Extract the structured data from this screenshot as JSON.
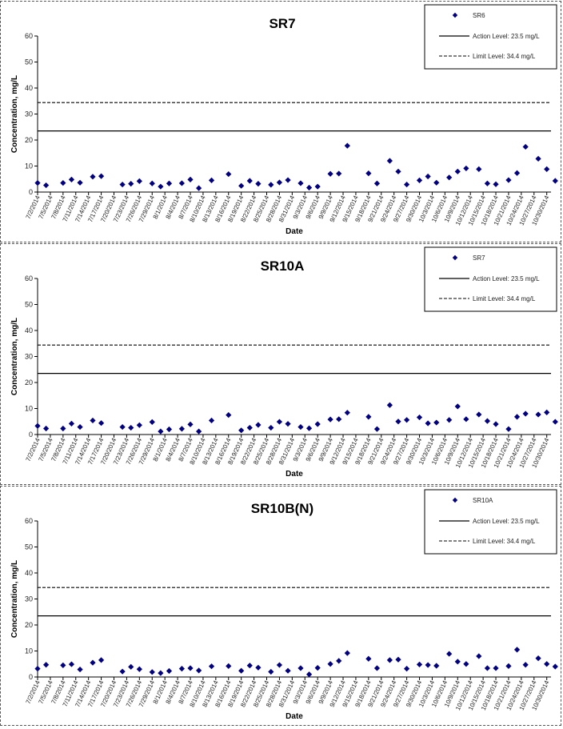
{
  "chart_data": [
    {
      "type": "scatter",
      "title": "SR7",
      "xlabel": "Date",
      "ylabel": "Concentration, mg/L",
      "ylim": [
        0,
        60
      ],
      "yticks": [
        "0",
        "10",
        "20",
        "30",
        "40",
        "50",
        "60"
      ],
      "xlim": [
        "7/2/2014",
        "10/31/2014"
      ],
      "xticks": [
        "7/2/2014",
        "7/5/2014",
        "7/8/2014",
        "7/11/2014",
        "7/14/2014",
        "7/17/2014",
        "7/20/2014",
        "7/23/2014",
        "7/26/2014",
        "7/29/2014",
        "8/1/2014",
        "8/4/2014",
        "8/7/2014",
        "8/10/2014",
        "8/13/2014",
        "8/16/2014",
        "8/19/2014",
        "8/22/2014",
        "8/25/2014",
        "8/28/2014",
        "8/31/2014",
        "9/3/2014",
        "9/6/2014",
        "9/9/2014",
        "9/12/2014",
        "9/15/2014",
        "9/18/2014",
        "9/21/2014",
        "9/24/2014",
        "9/27/2014",
        "9/30/2014",
        "10/3/2014",
        "10/6/2014",
        "10/9/2014",
        "10/12/2014",
        "10/15/2014",
        "10/18/2014",
        "10/21/2014",
        "10/24/2014",
        "10/27/2014",
        "10/30/2014"
      ],
      "legend_position": "top-right",
      "series": [
        {
          "name": "SR6",
          "marker": "diamond",
          "color": "#000080",
          "x": [
            "7/2/2014",
            "7/4/2014",
            "7/8/2014",
            "7/10/2014",
            "7/12/2014",
            "7/15/2014",
            "7/17/2014",
            "7/22/2014",
            "7/24/2014",
            "7/26/2014",
            "7/29/2014",
            "7/31/2014",
            "8/2/2014",
            "8/5/2014",
            "8/7/2014",
            "8/9/2014",
            "8/12/2014",
            "8/16/2014",
            "8/19/2014",
            "8/21/2014",
            "8/23/2014",
            "8/26/2014",
            "8/28/2014",
            "8/30/2014",
            "9/2/2014",
            "9/4/2014",
            "9/6/2014",
            "9/9/2014",
            "9/11/2014",
            "9/13/2014",
            "9/18/2014",
            "9/20/2014",
            "9/23/2014",
            "9/25/2014",
            "9/27/2014",
            "9/30/2014",
            "10/2/2014",
            "10/4/2014",
            "10/7/2014",
            "10/9/2014",
            "10/11/2014",
            "10/14/2014",
            "10/16/2014",
            "10/18/2014",
            "10/21/2014",
            "10/23/2014",
            "10/25/2014",
            "10/28/2014",
            "10/30/2014",
            "11/1/2014"
          ],
          "y": [
            3.5,
            2.6,
            3.5,
            4.8,
            3.6,
            5.9,
            6.1,
            2.9,
            3.2,
            4.2,
            3.3,
            2.1,
            3.3,
            3.4,
            4.8,
            1.5,
            4.5,
            6.9,
            2.4,
            4.3,
            3.2,
            2.8,
            3.7,
            4.6,
            3.4,
            1.7,
            2.1,
            7.0,
            7.1,
            17.8,
            7.2,
            3.3,
            12.0,
            7.9,
            2.9,
            4.5,
            6.0,
            3.6,
            5.6,
            7.9,
            9.1,
            8.8,
            3.3,
            3.0,
            4.6,
            7.3,
            17.4,
            12.8,
            8.8,
            4.3
          ]
        }
      ],
      "reference_lines": [
        {
          "name": "Action Level: 23.5 mg/L",
          "y": 23.5,
          "style": "solid"
        },
        {
          "name": "Limit Level: 34.4 mg/L",
          "y": 34.4,
          "style": "dashed"
        }
      ]
    },
    {
      "type": "scatter",
      "title": "SR10A",
      "xlabel": "Date",
      "ylabel": "Concentration, mg/L",
      "ylim": [
        0,
        60
      ],
      "yticks": [
        "0",
        "10",
        "20",
        "30",
        "40",
        "50",
        "60"
      ],
      "xlim": [
        "7/2/2014",
        "10/31/2014"
      ],
      "xticks": [
        "7/2/2014",
        "7/5/2014",
        "7/8/2014",
        "7/11/2014",
        "7/14/2014",
        "7/17/2014",
        "7/20/2014",
        "7/23/2014",
        "7/26/2014",
        "7/29/2014",
        "8/1/2014",
        "8/4/2014",
        "8/7/2014",
        "8/10/2014",
        "8/13/2014",
        "8/16/2014",
        "8/19/2014",
        "8/22/2014",
        "8/25/2014",
        "8/28/2014",
        "8/31/2014",
        "9/3/2014",
        "9/6/2014",
        "9/9/2014",
        "9/12/2014",
        "9/15/2014",
        "9/18/2014",
        "9/21/2014",
        "9/24/2014",
        "9/27/2014",
        "9/30/2014",
        "10/3/2014",
        "10/6/2014",
        "10/9/2014",
        "10/12/2014",
        "10/15/2014",
        "10/18/2014",
        "10/21/2014",
        "10/24/2014",
        "10/27/2014",
        "10/30/2014"
      ],
      "legend_position": "top-right",
      "series": [
        {
          "name": "SR7",
          "marker": "diamond",
          "color": "#000080",
          "x": [
            "7/2/2014",
            "7/4/2014",
            "7/8/2014",
            "7/10/2014",
            "7/12/2014",
            "7/15/2014",
            "7/17/2014",
            "7/22/2014",
            "7/24/2014",
            "7/26/2014",
            "7/29/2014",
            "7/31/2014",
            "8/2/2014",
            "8/5/2014",
            "8/7/2014",
            "8/9/2014",
            "8/12/2014",
            "8/16/2014",
            "8/19/2014",
            "8/21/2014",
            "8/23/2014",
            "8/26/2014",
            "8/28/2014",
            "8/30/2014",
            "9/2/2014",
            "9/4/2014",
            "9/6/2014",
            "9/9/2014",
            "9/11/2014",
            "9/13/2014",
            "9/18/2014",
            "9/20/2014",
            "9/23/2014",
            "9/25/2014",
            "9/27/2014",
            "9/30/2014",
            "10/2/2014",
            "10/4/2014",
            "10/7/2014",
            "10/9/2014",
            "10/11/2014",
            "10/14/2014",
            "10/16/2014",
            "10/18/2014",
            "10/21/2014",
            "10/23/2014",
            "10/25/2014",
            "10/28/2014",
            "10/30/2014",
            "11/1/2014"
          ],
          "y": [
            3.3,
            2.3,
            2.3,
            4.2,
            2.9,
            5.4,
            4.4,
            2.9,
            2.6,
            3.6,
            4.8,
            1.2,
            2.0,
            2.2,
            3.9,
            1.2,
            5.4,
            7.5,
            1.6,
            2.6,
            3.7,
            2.6,
            4.9,
            4.1,
            2.9,
            2.4,
            4.0,
            5.8,
            5.9,
            8.4,
            6.8,
            2.1,
            11.3,
            5.0,
            5.6,
            6.6,
            4.3,
            4.6,
            5.6,
            10.8,
            5.9,
            7.7,
            5.2,
            4.0,
            2.1,
            6.8,
            8.0,
            7.7,
            8.5,
            4.9
          ]
        }
      ],
      "reference_lines": [
        {
          "name": "Action Level: 23.5 mg/L",
          "y": 23.5,
          "style": "solid"
        },
        {
          "name": "Limit Level: 34.4 mg/L",
          "y": 34.4,
          "style": "dashed"
        }
      ]
    },
    {
      "type": "scatter",
      "title": "SR10B(N)",
      "xlabel": "Date",
      "ylabel": "Concentration, mg/L",
      "ylim": [
        0,
        60
      ],
      "yticks": [
        "0",
        "10",
        "20",
        "30",
        "40",
        "50",
        "60"
      ],
      "xlim": [
        "7/2/2014",
        "10/31/2014"
      ],
      "xticks": [
        "7/2/2014",
        "7/5/2014",
        "7/8/2014",
        "7/11/2014",
        "7/14/2014",
        "7/17/2014",
        "7/20/2014",
        "7/23/2014",
        "7/26/2014",
        "7/29/2014",
        "8/1/2014",
        "8/4/2014",
        "8/7/2014",
        "8/10/2014",
        "8/13/2014",
        "8/16/2014",
        "8/19/2014",
        "8/22/2014",
        "8/25/2014",
        "8/28/2014",
        "8/31/2014",
        "9/3/2014",
        "9/6/2014",
        "9/9/2014",
        "9/12/2014",
        "9/15/2014",
        "9/18/2014",
        "9/21/2014",
        "9/24/2014",
        "9/27/2014",
        "9/30/2014",
        "10/3/2014",
        "10/6/2014",
        "10/9/2014",
        "10/12/2014",
        "10/15/2014",
        "10/18/2014",
        "10/21/2014",
        "10/24/2014",
        "10/27/2014",
        "10/30/2014"
      ],
      "legend_position": "top-right",
      "series": [
        {
          "name": "SR10A",
          "marker": "diamond",
          "color": "#000080",
          "x": [
            "7/2/2014",
            "7/4/2014",
            "7/8/2014",
            "7/10/2014",
            "7/12/2014",
            "7/15/2014",
            "7/17/2014",
            "7/22/2014",
            "7/24/2014",
            "7/26/2014",
            "7/29/2014",
            "7/31/2014",
            "8/2/2014",
            "8/5/2014",
            "8/7/2014",
            "8/9/2014",
            "8/12/2014",
            "8/16/2014",
            "8/19/2014",
            "8/21/2014",
            "8/23/2014",
            "8/26/2014",
            "8/28/2014",
            "8/30/2014",
            "9/2/2014",
            "9/4/2014",
            "9/6/2014",
            "9/9/2014",
            "9/11/2014",
            "9/13/2014",
            "9/18/2014",
            "9/20/2014",
            "9/23/2014",
            "9/25/2014",
            "9/27/2014",
            "9/30/2014",
            "10/2/2014",
            "10/4/2014",
            "10/7/2014",
            "10/9/2014",
            "10/11/2014",
            "10/14/2014",
            "10/16/2014",
            "10/18/2014",
            "10/21/2014",
            "10/23/2014",
            "10/25/2014",
            "10/28/2014",
            "10/30/2014",
            "11/1/2014"
          ],
          "y": [
            3.2,
            4.7,
            4.5,
            4.9,
            2.9,
            5.5,
            6.5,
            2.1,
            3.9,
            3.0,
            1.9,
            1.5,
            2.3,
            3.2,
            3.4,
            2.5,
            4.1,
            4.2,
            2.4,
            4.4,
            3.6,
            2.0,
            4.6,
            2.4,
            3.4,
            1.0,
            3.5,
            5.0,
            6.2,
            9.2,
            7.0,
            3.4,
            6.5,
            6.7,
            3.2,
            4.8,
            4.6,
            4.3,
            8.9,
            5.9,
            5.0,
            8.0,
            3.4,
            3.4,
            4.2,
            10.5,
            4.7,
            7.2,
            5.0,
            4.0
          ]
        }
      ],
      "reference_lines": [
        {
          "name": "Action Level: 23.5 mg/L",
          "y": 23.5,
          "style": "solid"
        },
        {
          "name": "Limit Level: 34.4 mg/L",
          "y": 34.4,
          "style": "dashed"
        }
      ]
    }
  ]
}
